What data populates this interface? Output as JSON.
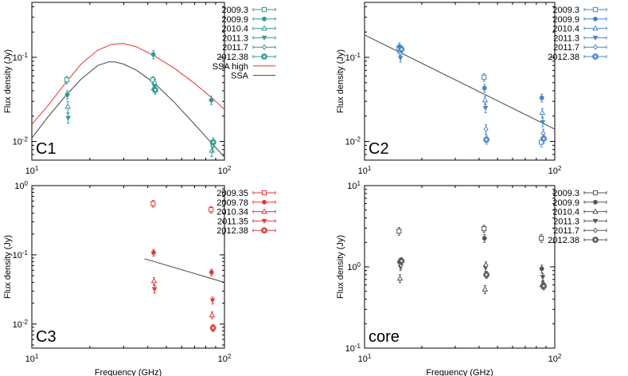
{
  "chart_data": [
    {
      "type": "scatter",
      "panel_label": "C1",
      "xlabel": "",
      "ylabel": "Flux density (Jy)",
      "xscale": "log",
      "yscale": "log",
      "xlim": [
        10,
        100
      ],
      "ylim": [
        0.006,
        0.45
      ],
      "xticks": [
        {
          "v": 10,
          "b": "10",
          "e": "1"
        },
        {
          "v": 100,
          "b": "10",
          "e": "2"
        }
      ],
      "yticks": [
        {
          "v": 0.01,
          "b": "10",
          "e": "-2"
        },
        {
          "v": 0.1,
          "b": "10",
          "e": "-1"
        }
      ],
      "color": "#2f9a92",
      "legend_position": "outside-right",
      "series": [
        {
          "name": "2009.3",
          "marker": "open-square",
          "points": [
            [
              15.4,
              0.054,
              0.0055
            ],
            [
              43.1,
              0.054,
              0.005
            ]
          ]
        },
        {
          "name": "2009.9",
          "marker": "dot",
          "points": [
            [
              15.4,
              0.036,
              0.004
            ],
            [
              43.1,
              0.108,
              0.012
            ],
            [
              86.2,
              0.031,
              0.0035
            ]
          ]
        },
        {
          "name": "2010.4",
          "marker": "open-triangle",
          "points": [
            [
              15.4,
              0.026,
              0.004
            ],
            [
              43.1,
              0.043,
              0.0045
            ],
            [
              86.2,
              0.0078,
              0.0012
            ]
          ]
        },
        {
          "name": "2011.3",
          "marker": "down-triangle",
          "points": [
            [
              15.4,
              0.019,
              0.0025
            ],
            [
              43.1,
              0.046,
              0.005
            ],
            [
              86.2,
              0.0092,
              0.0012
            ]
          ]
        },
        {
          "name": "2011.7",
          "marker": "diamond",
          "points": [
            [
              43.1,
              0.05,
              0.005
            ],
            [
              86.2,
              0.0088,
              0.0012
            ]
          ]
        },
        {
          "name": "2012.38",
          "marker": "big-dot",
          "points": [
            [
              43.1,
              0.041,
              0.0045
            ],
            [
              86.2,
              0.0098,
              0.0012
            ]
          ]
        }
      ],
      "curves": [
        {
          "name": "SSA high",
          "color": "#e8392f",
          "x": [
            10,
            12,
            15,
            18,
            22,
            26,
            30,
            35,
            43,
            55,
            70,
            86,
            100
          ],
          "y": [
            0.016,
            0.026,
            0.05,
            0.083,
            0.122,
            0.143,
            0.146,
            0.133,
            0.105,
            0.074,
            0.049,
            0.033,
            0.024
          ]
        },
        {
          "name": "SSA",
          "color": "#444444",
          "x": [
            10,
            12,
            15,
            18,
            22,
            25,
            27,
            30,
            35,
            43,
            55,
            70,
            86,
            100
          ],
          "y": [
            0.011,
            0.019,
            0.035,
            0.055,
            0.08,
            0.088,
            0.088,
            0.083,
            0.07,
            0.05,
            0.029,
            0.016,
            0.0095,
            0.0065
          ]
        }
      ]
    },
    {
      "type": "scatter",
      "panel_label": "C2",
      "xlabel": "",
      "ylabel": "Flux density (Jy)",
      "xscale": "log",
      "yscale": "log",
      "xlim": [
        10,
        100
      ],
      "ylim": [
        0.006,
        0.45
      ],
      "xticks": [
        {
          "v": 10,
          "b": "10",
          "e": "1"
        },
        {
          "v": 100,
          "b": "10",
          "e": "2"
        }
      ],
      "yticks": [
        {
          "v": 0.01,
          "b": "10",
          "e": "-2"
        },
        {
          "v": 0.1,
          "b": "10",
          "e": "-1"
        }
      ],
      "color": "#4a86c5",
      "legend_position": "outside-right",
      "series": [
        {
          "name": "2009.3",
          "marker": "open-square",
          "points": [
            [
              15.4,
              0.128,
              0.012
            ],
            [
              43.1,
              0.058,
              0.006
            ],
            [
              86.2,
              0.0098,
              0.0012
            ]
          ]
        },
        {
          "name": "2009.9",
          "marker": "dot",
          "points": [
            [
              15.4,
              0.135,
              0.013
            ],
            [
              43.1,
              0.043,
              0.0045
            ],
            [
              86.2,
              0.033,
              0.0035
            ]
          ]
        },
        {
          "name": "2010.4",
          "marker": "open-triangle",
          "points": [
            [
              15.4,
              0.118,
              0.012
            ],
            [
              43.1,
              0.031,
              0.0035
            ],
            [
              86.2,
              0.022,
              0.0025
            ]
          ]
        },
        {
          "name": "2011.3",
          "marker": "down-triangle",
          "points": [
            [
              15.4,
              0.098,
              0.01
            ],
            [
              43.1,
              0.025,
              0.003
            ],
            [
              86.2,
              0.017,
              0.002
            ]
          ]
        },
        {
          "name": "2011.7",
          "marker": "diamond",
          "points": [
            [
              15.4,
              0.112,
              0.011
            ],
            [
              43.1,
              0.014,
              0.0018
            ],
            [
              86.2,
              0.0125,
              0.0015
            ]
          ]
        },
        {
          "name": "2012.38",
          "marker": "big-dot",
          "points": [
            [
              15.4,
              0.125,
              0.012
            ],
            [
              43.1,
              0.0105,
              0.0012
            ],
            [
              86.2,
              0.0108,
              0.0012
            ]
          ]
        }
      ],
      "curves": [
        {
          "name": "",
          "color": "#444444",
          "x": [
            10,
            100
          ],
          "y": [
            0.185,
            0.014
          ]
        }
      ]
    },
    {
      "type": "scatter",
      "panel_label": "C3",
      "xlabel": "Frequency (GHz)",
      "ylabel": "Flux density (Jy)",
      "xscale": "log",
      "yscale": "log",
      "xlim": [
        10,
        100
      ],
      "ylim": [
        0.0045,
        1
      ],
      "xticks": [
        {
          "v": 10,
          "b": "10",
          "e": "1"
        },
        {
          "v": 100,
          "b": "10",
          "e": "2"
        }
      ],
      "yticks": [
        {
          "v": 0.01,
          "b": "10",
          "e": "-2"
        },
        {
          "v": 0.1,
          "b": "10",
          "e": "-1"
        },
        {
          "v": 1,
          "b": "10",
          "e": "0"
        }
      ],
      "color": "#e0383a",
      "legend_position": "outside-right",
      "series": [
        {
          "name": "2009.35",
          "marker": "open-square",
          "points": [
            [
              43.1,
              0.55,
              0.06
            ],
            [
              86.2,
              0.45,
              0.05
            ]
          ]
        },
        {
          "name": "2009.78",
          "marker": "dot",
          "points": [
            [
              43.1,
              0.108,
              0.012
            ],
            [
              86.2,
              0.056,
              0.006
            ]
          ]
        },
        {
          "name": "2010.34",
          "marker": "open-triangle",
          "points": [
            [
              43.1,
              0.042,
              0.005
            ],
            [
              86.2,
              0.0135,
              0.0015
            ]
          ]
        },
        {
          "name": "2011.35",
          "marker": "down-triangle",
          "points": [
            [
              43.1,
              0.032,
              0.004
            ],
            [
              86.2,
              0.022,
              0.0025
            ]
          ]
        },
        {
          "name": "2012.38",
          "marker": "big-dot",
          "points": [
            [
              86.2,
              0.0088,
              0.001
            ]
          ]
        }
      ],
      "curves": [
        {
          "name": "",
          "color": "#444444",
          "x": [
            38.5,
            100
          ],
          "y": [
            0.088,
            0.04
          ]
        }
      ]
    },
    {
      "type": "scatter",
      "panel_label": "core",
      "xlabel": "Frequency (GHz)",
      "ylabel": "Flux density (Jy)",
      "xscale": "log",
      "yscale": "log",
      "xlim": [
        10,
        100
      ],
      "ylim": [
        0.1,
        10
      ],
      "xticks": [
        {
          "v": 10,
          "b": "10",
          "e": "1"
        },
        {
          "v": 100,
          "b": "10",
          "e": "2"
        }
      ],
      "yticks": [
        {
          "v": 0.1,
          "b": "10",
          "e": "-1"
        },
        {
          "v": 1,
          "b": "10",
          "e": "0"
        },
        {
          "v": 10,
          "b": "10",
          "e": "1"
        }
      ],
      "color": "#555555",
      "legend_position": "outside-right",
      "series": [
        {
          "name": "2009.3",
          "marker": "open-square",
          "points": [
            [
              15.4,
              2.75,
              0.3
            ],
            [
              43.1,
              2.95,
              0.3
            ],
            [
              86.2,
              2.25,
              0.25
            ]
          ]
        },
        {
          "name": "2009.9",
          "marker": "dot",
          "points": [
            [
              15.4,
              1.15,
              0.12
            ],
            [
              43.1,
              2.25,
              0.25
            ],
            [
              86.2,
              0.95,
              0.1
            ]
          ]
        },
        {
          "name": "2010.4",
          "marker": "open-triangle",
          "points": [
            [
              15.4,
              0.72,
              0.08
            ],
            [
              43.1,
              0.53,
              0.06
            ],
            [
              86.2,
              0.6,
              0.06
            ]
          ]
        },
        {
          "name": "2011.3",
          "marker": "down-triangle",
          "points": [
            [
              15.4,
              1.0,
              0.1
            ],
            [
              43.1,
              0.98,
              0.1
            ],
            [
              86.2,
              0.75,
              0.08
            ]
          ]
        },
        {
          "name": "2011.7",
          "marker": "diamond",
          "points": [
            [
              15.4,
              1.05,
              0.1
            ],
            [
              43.1,
              1.05,
              0.1
            ],
            [
              86.2,
              0.62,
              0.06
            ]
          ]
        },
        {
          "name": "2012.38",
          "marker": "big-dot",
          "points": [
            [
              15.4,
              1.18,
              0.12
            ],
            [
              43.1,
              0.8,
              0.08
            ],
            [
              86.2,
              0.58,
              0.06
            ]
          ]
        }
      ],
      "curves": []
    }
  ]
}
